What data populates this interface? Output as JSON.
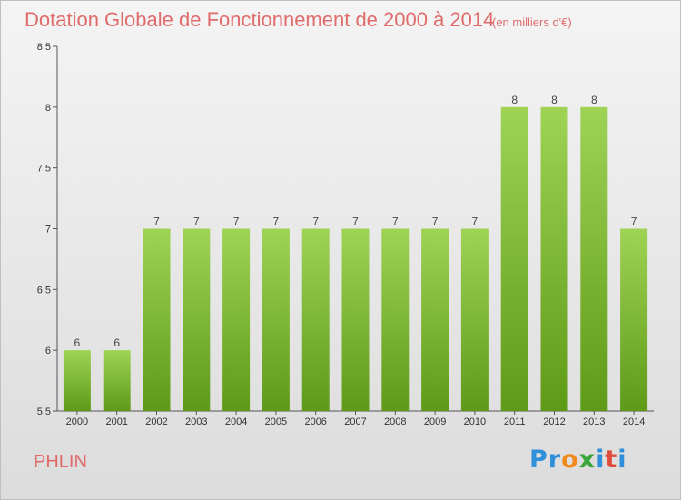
{
  "header": {
    "title": "Dotation Globale de Fonctionnement de 2000 à 2014",
    "subtitle": "(en milliers d'€)"
  },
  "footer": {
    "city": "PHLIN",
    "logo": {
      "p1": "Pr",
      "p2": "o",
      "p3": "x",
      "p4": "i",
      "p5": "t",
      "p6": "i"
    }
  },
  "colors": {
    "bar_top": "#9fd356",
    "bar_bottom": "#5e9a17",
    "title": "#e06b6b"
  },
  "chart_data": {
    "type": "bar",
    "title": "Dotation Globale de Fonctionnement de 2000 à 2014",
    "subtitle": "(en milliers d'€)",
    "categories": [
      "2000",
      "2001",
      "2002",
      "2003",
      "2004",
      "2005",
      "2006",
      "2007",
      "2008",
      "2009",
      "2010",
      "2011",
      "2012",
      "2013",
      "2014"
    ],
    "values": [
      6,
      6,
      7,
      7,
      7,
      7,
      7,
      7,
      7,
      7,
      7,
      8,
      8,
      8,
      7
    ],
    "data_labels": [
      "6",
      "6",
      "7",
      "7",
      "7",
      "7",
      "7",
      "7",
      "7",
      "7",
      "7",
      "8",
      "8",
      "8",
      "7"
    ],
    "ylim": [
      5.5,
      8.5
    ],
    "yticks": [
      "5.5",
      "6",
      "6.5",
      "7",
      "7.5",
      "8",
      "8.5"
    ],
    "grid": false,
    "xlabel": "",
    "ylabel": ""
  }
}
